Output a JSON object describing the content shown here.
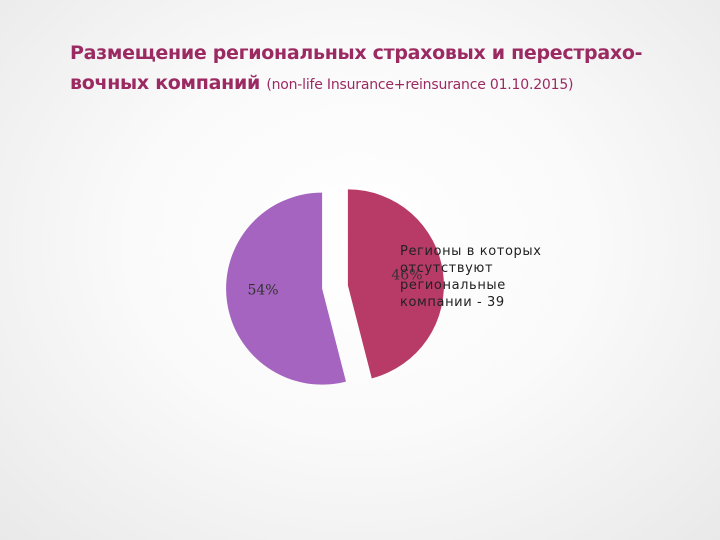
{
  "title": {
    "line1": "Размещение региональных  страховых и перестрахо-",
    "line2_main": "вочных компаний",
    "line2_sub": "(non-life Insurance+reinsurance 01.10.2015)"
  },
  "chart_data": {
    "type": "pie",
    "title": "Размещение региональных  страховых и перестраховочных компаний (non-life Insurance+reinsurance 01.10.2015)",
    "slices": [
      {
        "label": "46%",
        "value": 46,
        "color": "#b83a66",
        "exploded": true
      },
      {
        "label": "54%",
        "value": 54,
        "color": "#a464bf",
        "exploded": true
      }
    ],
    "annotation": [
      "Регионы в которых",
      "отсутствуют",
      "региональные",
      "компании - 39"
    ],
    "legend": "none"
  }
}
